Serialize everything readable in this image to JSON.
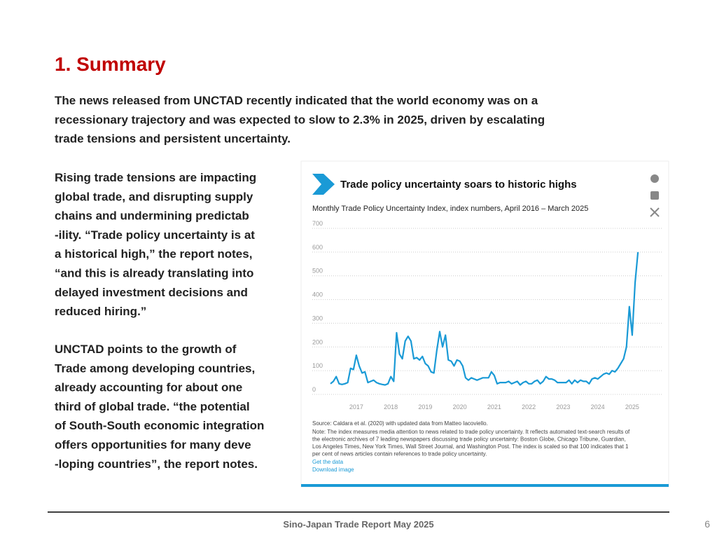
{
  "slide": {
    "title": "1. Summary",
    "paragraphs": [
      [
        "The news released from UNCTAD recently indicated that the world economy was on a",
        "recessionary trajectory and was expected to slow to 2.3% in 2025, driven by escalating",
        "trade tensions and persistent uncertainty."
      ],
      [
        "Rising trade tensions are impacting",
        "global trade, and disrupting supply",
        "chains and undermining predictab",
        "-ility. “Trade policy uncertainty is at",
        "a historical high,” the report notes,",
        "“and this is already translating into",
        "delayed investment decisions and",
        "reduced hiring.”"
      ],
      [
        "UNCTAD points to the growth of",
        "Trade among developing countries,",
        "already accounting for about one",
        "third of global trade. “the potential",
        "of South-South economic integration",
        "offers opportunities for many deve",
        "-loping countries”, the report notes."
      ]
    ],
    "footer": "Sino-Japan Trade Report May 2025",
    "page_number": 6
  },
  "chart_data": {
    "type": "line",
    "title": "Trade policy uncertainty soars to historic highs",
    "subtitle": "Monthly Trade Policy Uncertainty Index, index numbers, April 2016 – March 2025",
    "categories": [
      null,
      null,
      null,
      null,
      null,
      null,
      null,
      null,
      null,
      "2017",
      null,
      null,
      null,
      null,
      null,
      null,
      null,
      null,
      null,
      null,
      null,
      "2018",
      null,
      null,
      null,
      null,
      null,
      null,
      null,
      null,
      null,
      null,
      null,
      "2019",
      null,
      null,
      null,
      null,
      null,
      null,
      null,
      null,
      null,
      null,
      null,
      "2020",
      null,
      null,
      null,
      null,
      null,
      null,
      null,
      null,
      null,
      null,
      null,
      "2021",
      null,
      null,
      null,
      null,
      null,
      null,
      null,
      null,
      null,
      null,
      null,
      "2022",
      null,
      null,
      null,
      null,
      null,
      null,
      null,
      null,
      null,
      null,
      null,
      "2023",
      null,
      null,
      null,
      null,
      null,
      null,
      null,
      null,
      null,
      null,
      null,
      "2024",
      null,
      null,
      null,
      null,
      null,
      null,
      null,
      null,
      null,
      null,
      null,
      "2025",
      null,
      null
    ],
    "values": [
      45,
      55,
      75,
      45,
      42,
      45,
      50,
      110,
      105,
      165,
      120,
      90,
      95,
      50,
      55,
      60,
      50,
      45,
      42,
      40,
      45,
      75,
      55,
      260,
      170,
      150,
      225,
      245,
      225,
      150,
      155,
      145,
      160,
      130,
      120,
      95,
      90,
      185,
      265,
      200,
      250,
      145,
      140,
      120,
      145,
      140,
      120,
      70,
      60,
      70,
      65,
      60,
      65,
      70,
      70,
      70,
      95,
      80,
      45,
      50,
      50,
      50,
      55,
      45,
      50,
      55,
      40,
      50,
      55,
      45,
      45,
      55,
      60,
      45,
      55,
      75,
      65,
      65,
      60,
      50,
      50,
      50,
      50,
      60,
      45,
      60,
      50,
      60,
      55,
      55,
      45,
      65,
      70,
      65,
      75,
      85,
      90,
      85,
      100,
      95,
      110,
      130,
      150,
      200,
      370,
      250,
      470,
      600
    ],
    "color": "#1a9ad6",
    "ylim": [
      0,
      700
    ],
    "yticks": [
      0,
      100,
      200,
      300,
      400,
      500,
      600,
      700
    ],
    "grid": true,
    "source": "Source: Caldara et al. (2020) with updated data from Matteo Iacoviello.",
    "note": [
      "Note: The index measures media attention to news related to trade policy uncertainty. It reflects automated text-search results of",
      "the electronic archives of 7 leading newspapers discussing trade policy uncertainty: Boston Globe, Chicago Tribune, Guardian,",
      "Los Angeles Times, New York Times, Wall Street Journal, and Washington Post. The index is scaled so that 100 indicates that 1",
      "per cent of news articles contain references to trade policy uncertainty."
    ],
    "links": [
      "Get the data",
      "Download image"
    ]
  }
}
